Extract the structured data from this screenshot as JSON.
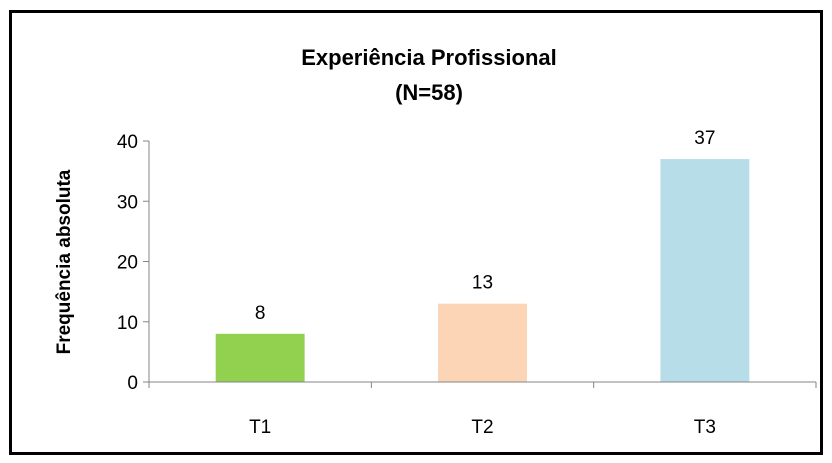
{
  "chart_data": {
    "type": "bar",
    "title": "Experiência Profissional",
    "subtitle": "(N=58)",
    "xlabel": "",
    "ylabel": "Frequência absoluta",
    "categories": [
      "T1",
      "T2",
      "T3"
    ],
    "values": [
      8,
      13,
      37
    ],
    "ylim": [
      0,
      40
    ],
    "yticks": [
      0,
      10,
      20,
      30,
      40
    ],
    "grid": false,
    "legend": "none",
    "colors": [
      "#92d050",
      "#fbd5b5",
      "#b7dde8"
    ]
  }
}
